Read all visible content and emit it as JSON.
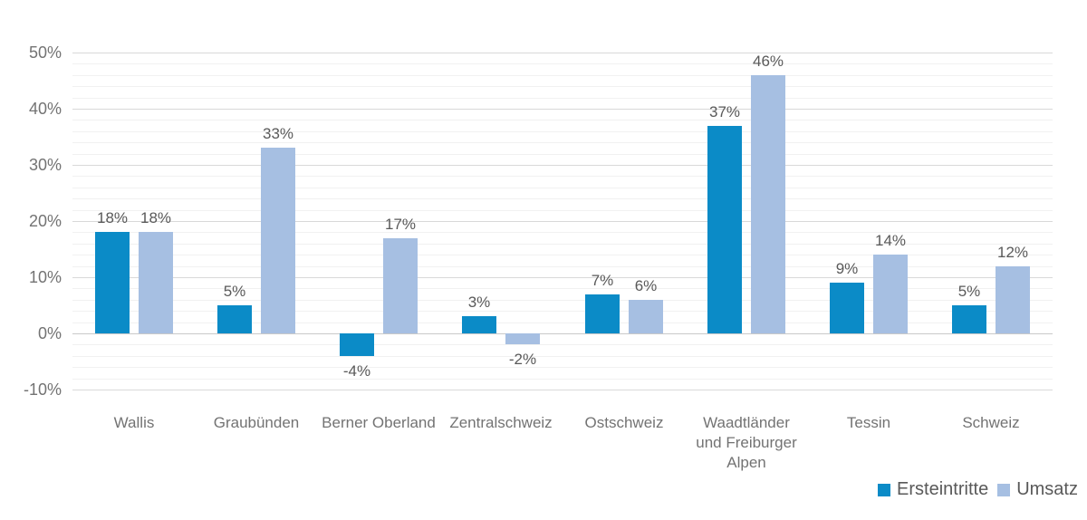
{
  "chart_data": {
    "type": "bar",
    "categories": [
      "Wallis",
      "Graubünden",
      "Berner Oberland",
      "Zentralschweiz",
      "Ostschweiz",
      "Waadtländer\nund Freiburger\nAlpen",
      "Tessin",
      "Schweiz"
    ],
    "series": [
      {
        "name": "Ersteintritte",
        "color": "#0b8bc7",
        "values": [
          18,
          5,
          -4,
          3,
          7,
          37,
          9,
          5
        ],
        "labels": [
          "18%",
          "5%",
          "-4%",
          "3%",
          "7%",
          "37%",
          "9%",
          "5%"
        ]
      },
      {
        "name": "Umsatz",
        "color": "#a6bfe2",
        "values": [
          18,
          33,
          17,
          -2,
          6,
          46,
          14,
          12
        ],
        "labels": [
          "18%",
          "33%",
          "17%",
          "-2%",
          "6%",
          "46%",
          "14%",
          "12%"
        ]
      }
    ],
    "title": "",
    "xlabel": "",
    "ylabel": "",
    "ylim": [
      -10,
      50
    ],
    "ytick_step": 10,
    "yminor_step": 2,
    "ytick_labels": [
      "50%",
      "40%",
      "30%",
      "20%",
      "10%",
      "0%",
      "-10%"
    ],
    "grid": "horizontal major and minor",
    "legend_position": "bottom-right"
  },
  "colors": {
    "series_ersteintritte": "#0b8bc7",
    "series_umsatz": "#a6bfe2",
    "axis_label": "#737373",
    "data_label": "#595959",
    "gridline_major": "#d9d9d9",
    "gridline_minor": "#f1f1f1",
    "zero_line": "#c9c9c9",
    "background": "#ffffff"
  }
}
